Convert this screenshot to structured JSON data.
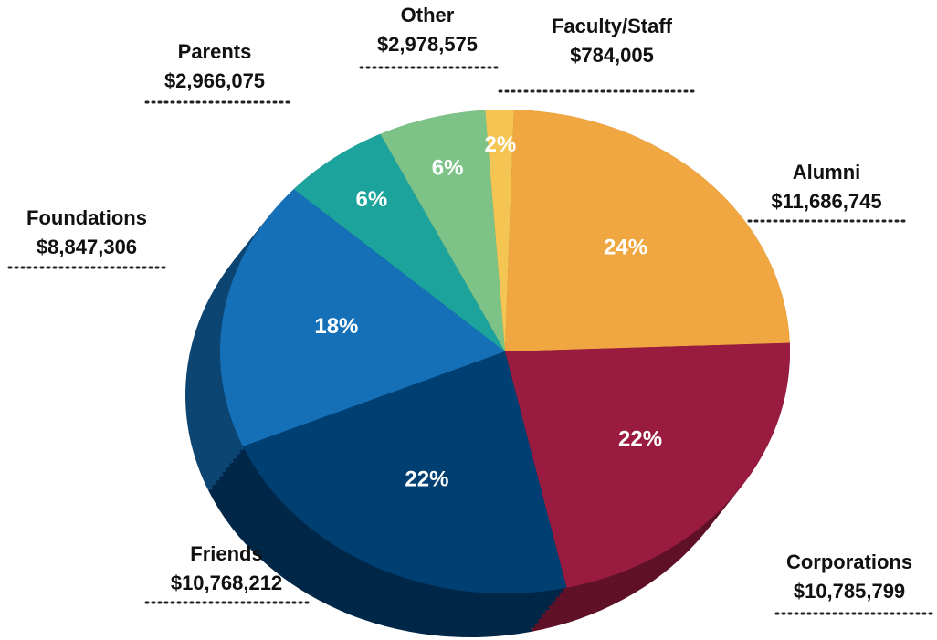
{
  "chart_data": {
    "type": "pie",
    "categories": [
      "Faculty/Staff",
      "Alumni",
      "Corporations",
      "Friends",
      "Foundations",
      "Parents",
      "Other"
    ],
    "values": [
      784005,
      11686745,
      10785799,
      10768212,
      8847306,
      2966075,
      2978575
    ],
    "value_labels": [
      "$784,005",
      "$11,686,745",
      "$10,785,799",
      "$10,768,212",
      "$8,847,306",
      "$2,966,075",
      "$2,978,575"
    ],
    "percentages": [
      2,
      24,
      22,
      22,
      18,
      6,
      6
    ],
    "percentage_labels": [
      "2%",
      "24%",
      "22%",
      "22%",
      "18%",
      "6%",
      "6%"
    ],
    "colors": [
      "#f4c553",
      "#f0a742",
      "#9a1b40",
      "#003f72",
      "#1570b8",
      "#1ba39c",
      "#7dc287"
    ]
  }
}
